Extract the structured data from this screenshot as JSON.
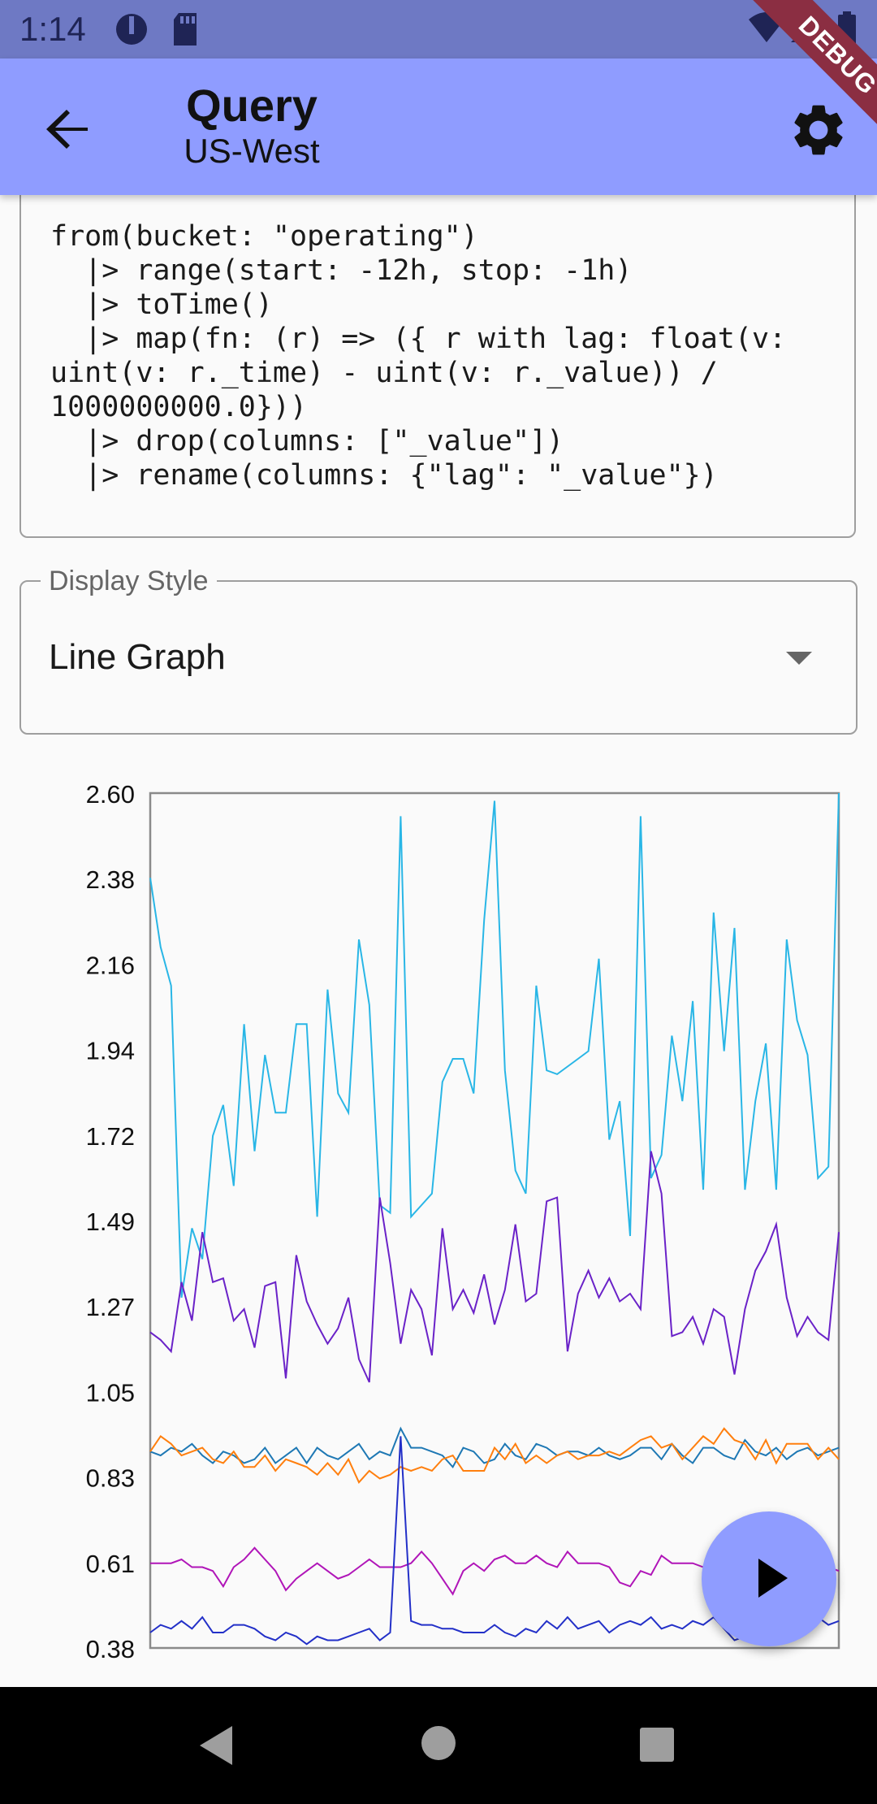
{
  "status_bar": {
    "time": "1:14"
  },
  "app_bar": {
    "title": "Query",
    "subtitle": "US-West"
  },
  "debug_banner": "DEBUG",
  "query": {
    "lines": [
      "from(bucket: \"operating\")",
      "  |> range(start: -12h, stop: -1h)",
      "  |> toTime()",
      "  |> map(fn: (r) => ({ r with lag: float(v:",
      "uint(v: r._time) - uint(v: r._value)) /",
      "1000000000.0}))",
      "  |> drop(columns: [\"_value\"])",
      "  |> rename(columns: {\"lag\": \"_value\"})"
    ]
  },
  "display_style": {
    "label": "Display Style",
    "value": "Line Graph"
  },
  "icons": {
    "back": "arrow-back-icon",
    "settings": "gear-icon",
    "play": "play-icon",
    "nav_back": "nav-back-icon",
    "nav_home": "nav-home-icon",
    "nav_recents": "nav-recents-icon"
  },
  "chart_data": {
    "type": "line",
    "ylim": [
      0.38,
      2.6
    ],
    "yticks": [
      "2.60",
      "2.38",
      "2.16",
      "1.94",
      "1.72",
      "1.49",
      "1.27",
      "1.05",
      "0.83",
      "0.61",
      "0.38"
    ],
    "grid": false,
    "series": [
      {
        "color": "#29b6e6",
        "values": [
          2.38,
          2.2,
          2.1,
          1.29,
          1.47,
          1.39,
          1.71,
          1.79,
          1.58,
          2.0,
          1.67,
          1.92,
          1.77,
          1.77,
          2.0,
          2.0,
          1.5,
          2.09,
          1.82,
          1.77,
          2.22,
          2.05,
          1.53,
          1.51,
          2.54,
          1.5,
          1.53,
          1.56,
          1.85,
          1.91,
          1.91,
          1.82,
          2.27,
          2.58,
          1.88,
          1.62,
          1.56,
          2.1,
          1.88,
          1.87,
          1.89,
          1.91,
          1.93,
          2.17,
          1.7,
          1.8,
          1.45,
          2.54,
          1.6,
          1.66,
          1.97,
          1.8,
          2.06,
          1.57,
          2.29,
          1.93,
          2.25,
          1.57,
          1.8,
          1.95,
          1.57,
          2.22,
          2.01,
          1.92,
          1.6,
          1.63,
          2.62
        ]
      },
      {
        "color": "#6a22c8",
        "values": [
          1.2,
          1.18,
          1.15,
          1.33,
          1.23,
          1.46,
          1.33,
          1.34,
          1.23,
          1.26,
          1.16,
          1.32,
          1.33,
          1.08,
          1.4,
          1.28,
          1.22,
          1.17,
          1.21,
          1.29,
          1.13,
          1.07,
          1.55,
          1.38,
          1.17,
          1.31,
          1.26,
          1.14,
          1.47,
          1.26,
          1.31,
          1.25,
          1.35,
          1.22,
          1.31,
          1.48,
          1.28,
          1.3,
          1.54,
          1.55,
          1.15,
          1.3,
          1.36,
          1.29,
          1.34,
          1.28,
          1.3,
          1.26,
          1.67,
          1.56,
          1.19,
          1.2,
          1.24,
          1.17,
          1.26,
          1.24,
          1.09,
          1.26,
          1.36,
          1.41,
          1.48,
          1.29,
          1.19,
          1.24,
          1.2,
          1.18,
          1.46
        ]
      },
      {
        "color": "#1e78b4",
        "values": [
          0.89,
          0.88,
          0.9,
          0.89,
          0.91,
          0.88,
          0.86,
          0.89,
          0.88,
          0.86,
          0.87,
          0.9,
          0.86,
          0.88,
          0.9,
          0.86,
          0.9,
          0.88,
          0.87,
          0.89,
          0.91,
          0.87,
          0.89,
          0.88,
          0.95,
          0.9,
          0.9,
          0.89,
          0.88,
          0.85,
          0.9,
          0.89,
          0.86,
          0.87,
          0.91,
          0.88,
          0.87,
          0.91,
          0.9,
          0.88,
          0.89,
          0.89,
          0.88,
          0.9,
          0.88,
          0.87,
          0.88,
          0.9,
          0.9,
          0.87,
          0.91,
          0.88,
          0.86,
          0.9,
          0.9,
          0.88,
          0.87,
          0.92,
          0.89,
          0.88,
          0.9,
          0.87,
          0.89,
          0.9,
          0.88,
          0.89,
          0.9
        ]
      },
      {
        "color": "#ff7f0e",
        "values": [
          0.89,
          0.93,
          0.91,
          0.88,
          0.89,
          0.9,
          0.87,
          0.86,
          0.89,
          0.85,
          0.85,
          0.88,
          0.84,
          0.87,
          0.86,
          0.85,
          0.83,
          0.86,
          0.83,
          0.87,
          0.81,
          0.84,
          0.82,
          0.83,
          0.85,
          0.84,
          0.85,
          0.84,
          0.87,
          0.88,
          0.84,
          0.84,
          0.84,
          0.9,
          0.87,
          0.91,
          0.86,
          0.88,
          0.86,
          0.88,
          0.89,
          0.87,
          0.88,
          0.88,
          0.89,
          0.88,
          0.9,
          0.92,
          0.93,
          0.9,
          0.91,
          0.87,
          0.9,
          0.93,
          0.91,
          0.95,
          0.92,
          0.91,
          0.87,
          0.92,
          0.86,
          0.91,
          0.91,
          0.91,
          0.87,
          0.9,
          0.87
        ]
      },
      {
        "color": "#b015b8",
        "values": [
          0.6,
          0.6,
          0.6,
          0.61,
          0.59,
          0.59,
          0.58,
          0.54,
          0.59,
          0.61,
          0.64,
          0.61,
          0.58,
          0.53,
          0.56,
          0.58,
          0.6,
          0.58,
          0.56,
          0.57,
          0.59,
          0.61,
          0.59,
          0.59,
          0.59,
          0.6,
          0.63,
          0.6,
          0.56,
          0.52,
          0.58,
          0.6,
          0.58,
          0.61,
          0.62,
          0.6,
          0.6,
          0.62,
          0.6,
          0.59,
          0.63,
          0.6,
          0.6,
          0.6,
          0.59,
          0.55,
          0.54,
          0.58,
          0.57,
          0.62,
          0.6,
          0.6,
          0.6,
          0.59,
          0.62,
          0.6,
          0.63,
          0.6,
          0.6,
          0.6,
          0.58,
          0.59,
          0.61,
          0.6,
          0.56,
          0.59,
          0.58
        ]
      },
      {
        "color": "#2330c8",
        "values": [
          0.42,
          0.44,
          0.43,
          0.45,
          0.43,
          0.46,
          0.42,
          0.42,
          0.44,
          0.44,
          0.43,
          0.41,
          0.4,
          0.42,
          0.41,
          0.39,
          0.41,
          0.4,
          0.4,
          0.41,
          0.42,
          0.43,
          0.4,
          0.42,
          0.93,
          0.45,
          0.44,
          0.44,
          0.43,
          0.43,
          0.42,
          0.42,
          0.42,
          0.44,
          0.42,
          0.41,
          0.43,
          0.42,
          0.45,
          0.43,
          0.46,
          0.43,
          0.44,
          0.45,
          0.42,
          0.44,
          0.45,
          0.44,
          0.46,
          0.43,
          0.44,
          0.43,
          0.45,
          0.44,
          0.46,
          0.43,
          0.4,
          0.41,
          0.42,
          0.44,
          0.45,
          0.43,
          0.44,
          0.44,
          0.46,
          0.44,
          0.45
        ]
      }
    ]
  }
}
